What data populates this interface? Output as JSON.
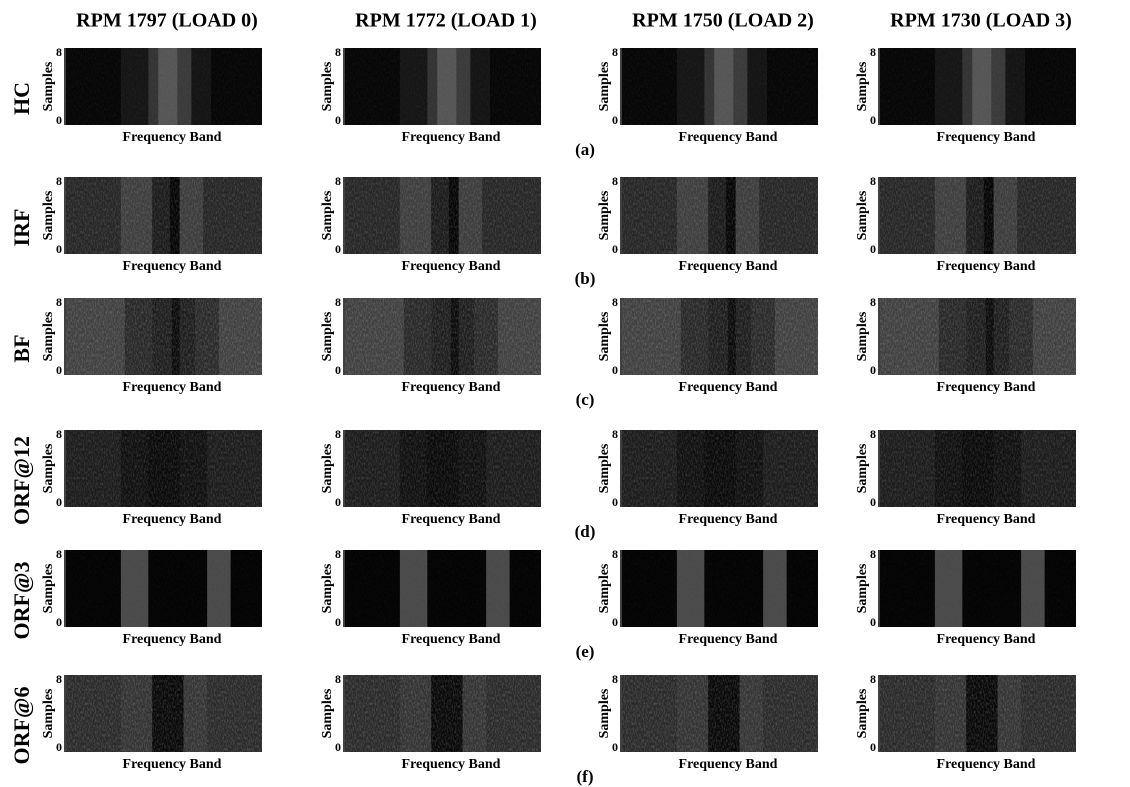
{
  "columns": [
    "RPM 1797 (LOAD 0)",
    "RPM 1772 (LOAD 1)",
    "RPM 1750 (LOAD 2)",
    "RPM 1730 (LOAD 3)"
  ],
  "rows": [
    {
      "label": "HC",
      "panel": "(a)"
    },
    {
      "label": "IRF",
      "panel": "(b)"
    },
    {
      "label": "BF",
      "panel": "(c)"
    },
    {
      "label": "ORF@12",
      "panel": "(d)"
    },
    {
      "label": "ORF@3",
      "panel": "(e)"
    },
    {
      "label": "ORF@6",
      "panel": "(f)"
    }
  ],
  "y_axis_label": "Samples",
  "x_axis_label": "Frequency Band",
  "y_ticks": [
    "8",
    "0"
  ]
}
